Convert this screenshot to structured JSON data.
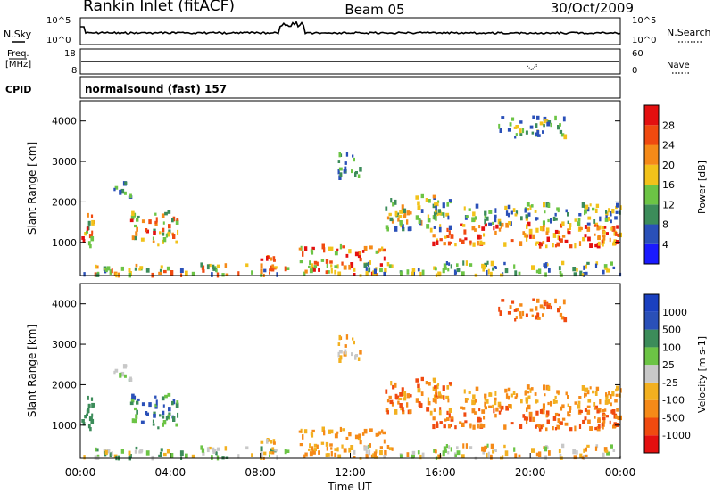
{
  "header": {
    "site": "Rankin Inlet (fitACF)",
    "beam": "Beam 05",
    "date": "30/Oct/2009"
  },
  "noise_panel": {
    "left_label": "N.Sky",
    "right_label": "N.Search",
    "left_ticks": [
      "10^5",
      "10^0"
    ],
    "right_ticks": [
      "10^5",
      "10^0"
    ]
  },
  "freq_panel": {
    "left_label_1": "Freq.",
    "left_label_2": "[MHz]",
    "right_label": "Nave",
    "left_ticks": [
      "18",
      "8"
    ],
    "right_ticks": [
      "60",
      "0"
    ]
  },
  "cpid_panel": {
    "label": "CPID",
    "text": "normalsound (fast) 157"
  },
  "colors": {
    "power": [
      "#1a1aff",
      "#2a50b8",
      "#3c8c5a",
      "#6cc445",
      "#f2c21a",
      "#f58a18",
      "#f04a10",
      "#e41010"
    ],
    "velocity": [
      "#e41010",
      "#f04a10",
      "#f58a18",
      "#f2b020",
      "#c8c8c8",
      "#6cc445",
      "#3c8c5a",
      "#2a50b8",
      "#1a40c0"
    ]
  },
  "chart_data": [
    {
      "type": "heatmap",
      "name": "power",
      "ylabel": "Slant Range [km]",
      "ylim": [
        180,
        4500
      ],
      "yticks": [
        1000,
        2000,
        3000,
        4000
      ],
      "xlim": [
        0,
        24
      ],
      "colorbar_label": "Power [dB]",
      "colorbar_ticks": [
        "4",
        "8",
        "12",
        "16",
        "20",
        "24",
        "28"
      ]
    },
    {
      "type": "heatmap",
      "name": "velocity",
      "ylabel": "Slant Range [km]",
      "ylim": [
        180,
        4500
      ],
      "yticks": [
        1000,
        2000,
        3000,
        4000
      ],
      "xlim": [
        0,
        24
      ],
      "xticks": [
        "00:00",
        "04:00",
        "08:00",
        "12:00",
        "16:00",
        "20:00",
        "00:00"
      ],
      "xlabel": "Time UT",
      "colorbar_label": "Velocity [m s-1]",
      "colorbar_ticks": [
        "1000",
        "500",
        "100",
        "25",
        "-25",
        "-100",
        "-500",
        "-1000"
      ]
    }
  ]
}
